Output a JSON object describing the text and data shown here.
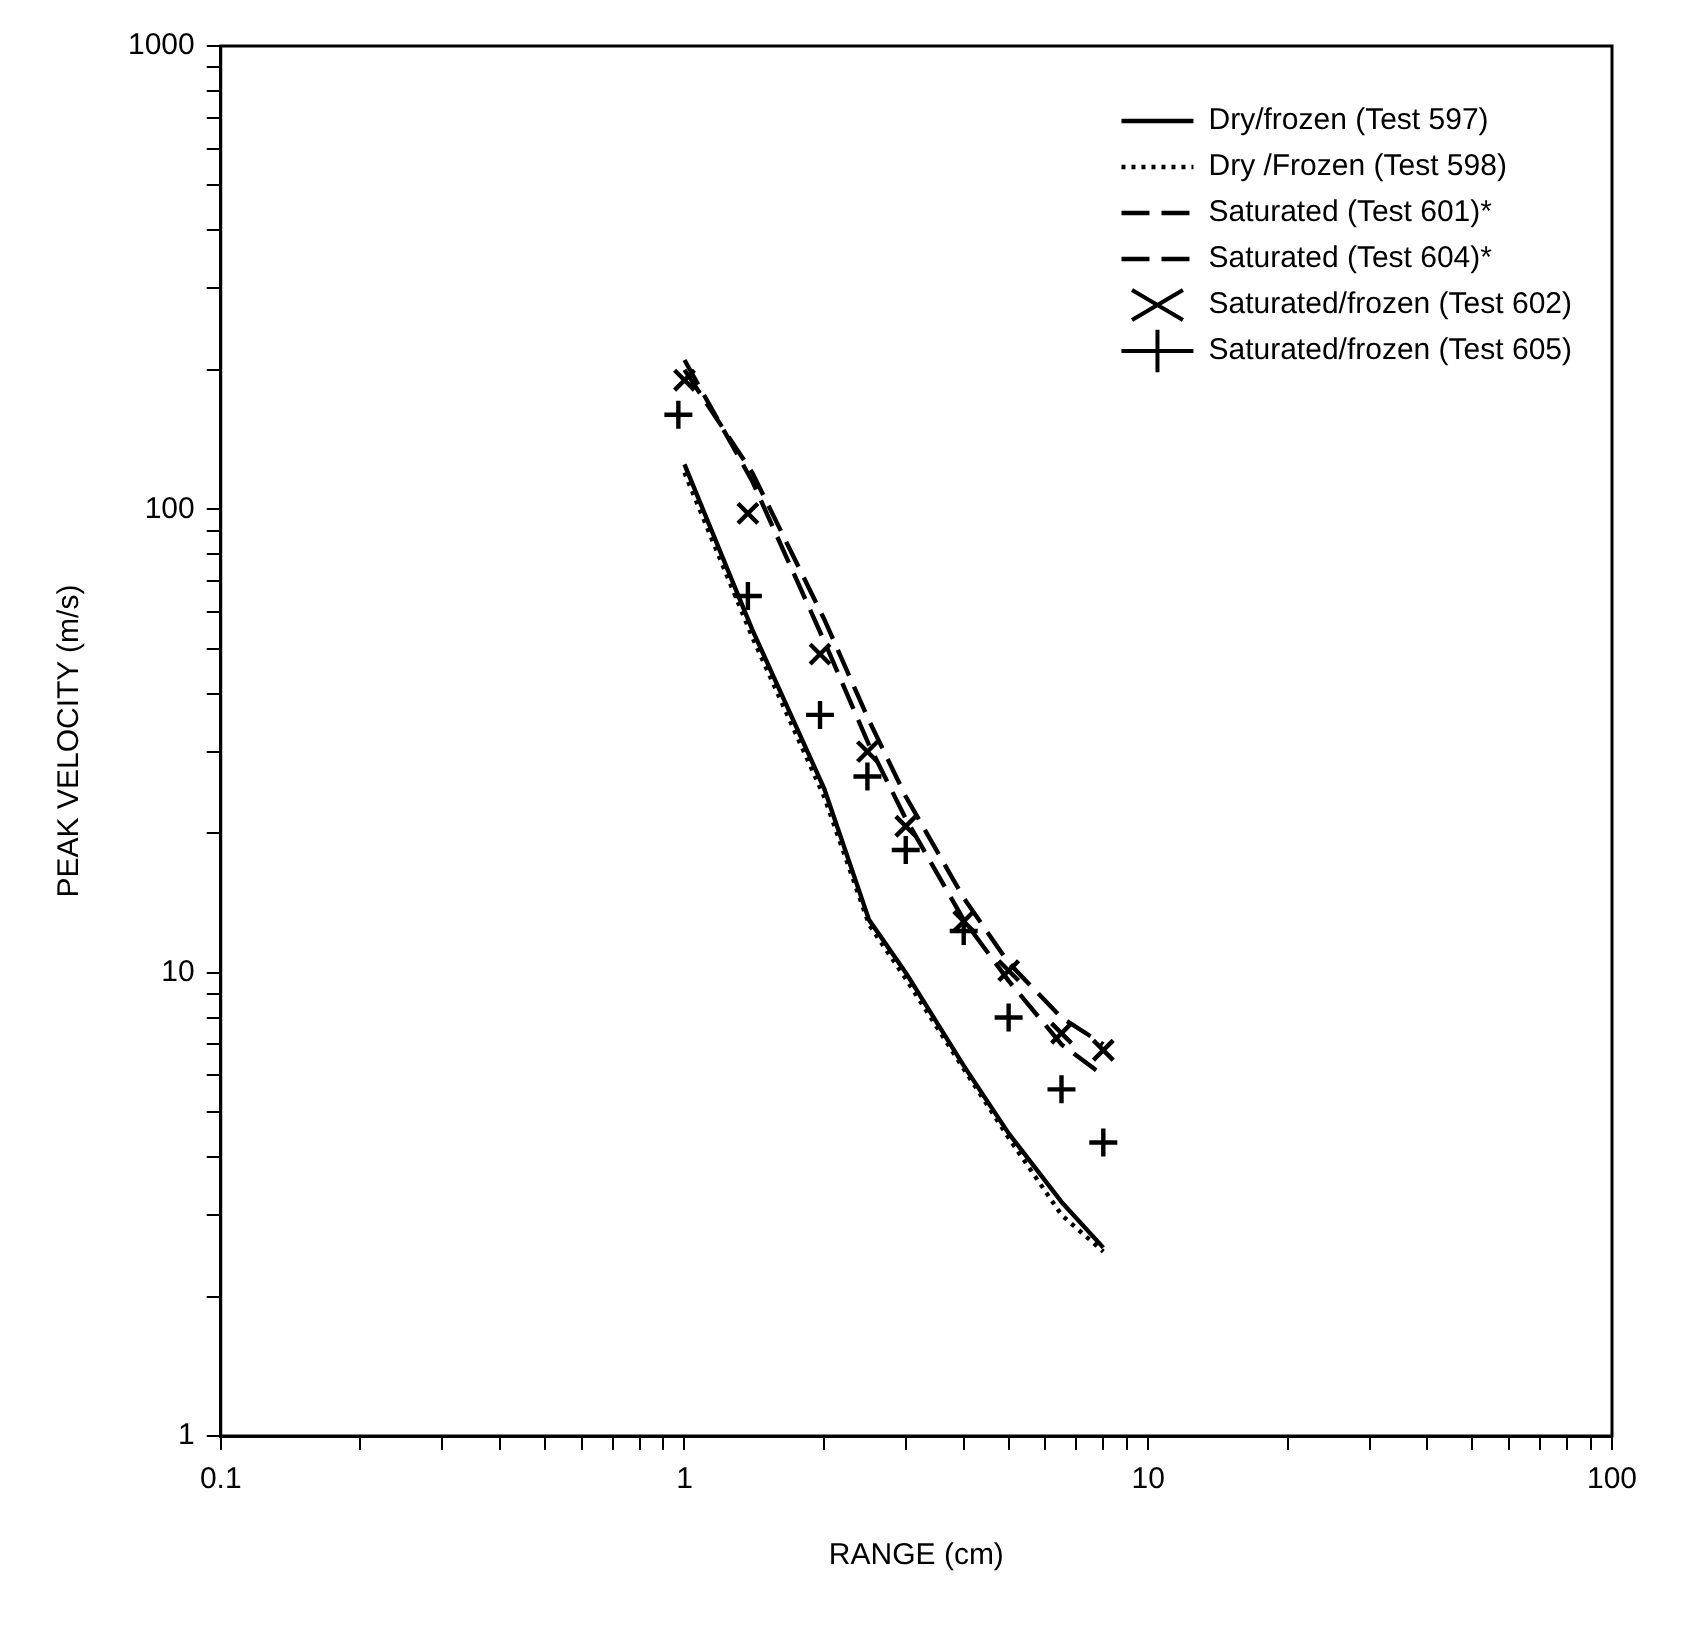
{
  "chart_data": {
    "type": "line",
    "xlabel": "RANGE (cm)",
    "ylabel": "PEAK VELOCITY (m/s)",
    "log": "xy",
    "xlim": [
      0.1,
      100
    ],
    "ylim": [
      1,
      1000
    ],
    "xticks": [
      0.1,
      {
        "value": 0.2,
        "label": null
      },
      {
        "value": 0.3,
        "label": null
      },
      {
        "value": 0.4,
        "label": null
      },
      {
        "value": 0.5,
        "label": null
      },
      {
        "value": 0.6,
        "label": null
      },
      {
        "value": 0.7,
        "label": null
      },
      {
        "value": 0.8,
        "label": null
      },
      {
        "value": 0.9,
        "label": null
      },
      1,
      {
        "value": 2,
        "label": null
      },
      {
        "value": 3,
        "label": null
      },
      {
        "value": 4,
        "label": null
      },
      {
        "value": 5,
        "label": null
      },
      {
        "value": 6,
        "label": null
      },
      {
        "value": 7,
        "label": null
      },
      {
        "value": 8,
        "label": null
      },
      {
        "value": 9,
        "label": null
      },
      10,
      {
        "value": 20,
        "label": null
      },
      {
        "value": 30,
        "label": null
      },
      {
        "value": 40,
        "label": null
      },
      {
        "value": 50,
        "label": null
      },
      {
        "value": 60,
        "label": null
      },
      {
        "value": 70,
        "label": null
      },
      {
        "value": 80,
        "label": null
      },
      {
        "value": 90,
        "label": null
      },
      100
    ],
    "yticks": [
      1,
      {
        "value": 2,
        "label": null
      },
      {
        "value": 3,
        "label": null
      },
      {
        "value": 4,
        "label": null
      },
      {
        "value": 5,
        "label": null
      },
      {
        "value": 6,
        "label": null
      },
      {
        "value": 7,
        "label": null
      },
      {
        "value": 8,
        "label": null
      },
      {
        "value": 9,
        "label": null
      },
      10,
      {
        "value": 20,
        "label": null
      },
      {
        "value": 30,
        "label": null
      },
      {
        "value": 40,
        "label": null
      },
      {
        "value": 50,
        "label": null
      },
      {
        "value": 60,
        "label": null
      },
      {
        "value": 70,
        "label": null
      },
      {
        "value": 80,
        "label": null
      },
      {
        "value": 90,
        "label": null
      },
      100,
      {
        "value": 200,
        "label": null
      },
      {
        "value": 300,
        "label": null
      },
      {
        "value": 400,
        "label": null
      },
      {
        "value": 500,
        "label": null
      },
      {
        "value": 600,
        "label": null
      },
      {
        "value": 700,
        "label": null
      },
      {
        "value": 800,
        "label": null
      },
      {
        "value": 900,
        "label": null
      },
      1000
    ],
    "grid": false,
    "legend": "top right",
    "series": [
      {
        "name": "Dry/frozen (Test 597)",
        "color": "#000000",
        "line_style": "solid",
        "marker": "none",
        "x": [
          1,
          1.4,
          2,
          2.5,
          3,
          4,
          5,
          6.5,
          8
        ],
        "values": [
          125,
          55,
          25,
          13,
          10,
          6.3,
          4.5,
          3.2,
          2.55
        ]
      },
      {
        "name": "Dry /Frozen (Test 598)",
        "color": "#000000",
        "line_style": "dotted",
        "marker": "none",
        "x": [
          1,
          1.4,
          2,
          2.5,
          3,
          4,
          5,
          6.5,
          8
        ],
        "values": [
          120,
          53,
          24,
          12.7,
          9.7,
          6.2,
          4.4,
          3,
          2.5
        ]
      },
      {
        "name": "Saturated (Test 601)*",
        "color": "#000000",
        "line_style": "dashed",
        "marker": "none",
        "x": [
          1,
          1.4,
          2,
          2.5,
          3,
          4,
          5,
          6.5,
          8
        ],
        "values": [
          210,
          115,
          52,
          31,
          21.5,
          13,
          9.6,
          7,
          6
        ]
      },
      {
        "name": "Saturated (Test 604)*",
        "color": "#000000",
        "line_style": "dashed",
        "marker": "none",
        "x": [
          1,
          1.4,
          2,
          2.5,
          3,
          4,
          5,
          6.5,
          8
        ],
        "values": [
          200,
          120,
          58,
          35,
          24,
          14.5,
          10.5,
          8,
          7
        ]
      },
      {
        "name": "Saturated/frozen (Test 602)",
        "type": "scatter",
        "color": "#000000",
        "marker": "x",
        "x": [
          1,
          1.37,
          1.96,
          2.48,
          3,
          4,
          5,
          6.5,
          8
        ],
        "values": [
          190,
          98,
          48.7,
          30,
          20.7,
          12.9,
          10.1,
          7.4,
          6.8
        ]
      },
      {
        "name": "Saturated/frozen (Test 605)",
        "type": "scatter",
        "color": "#000000",
        "marker": "cross",
        "x": [
          0.97,
          1.37,
          1.96,
          2.48,
          3,
          4,
          5,
          6.5,
          8
        ],
        "values": [
          160,
          65,
          36,
          26.5,
          18.4,
          12.3,
          8,
          5.6,
          4.3
        ]
      }
    ]
  }
}
